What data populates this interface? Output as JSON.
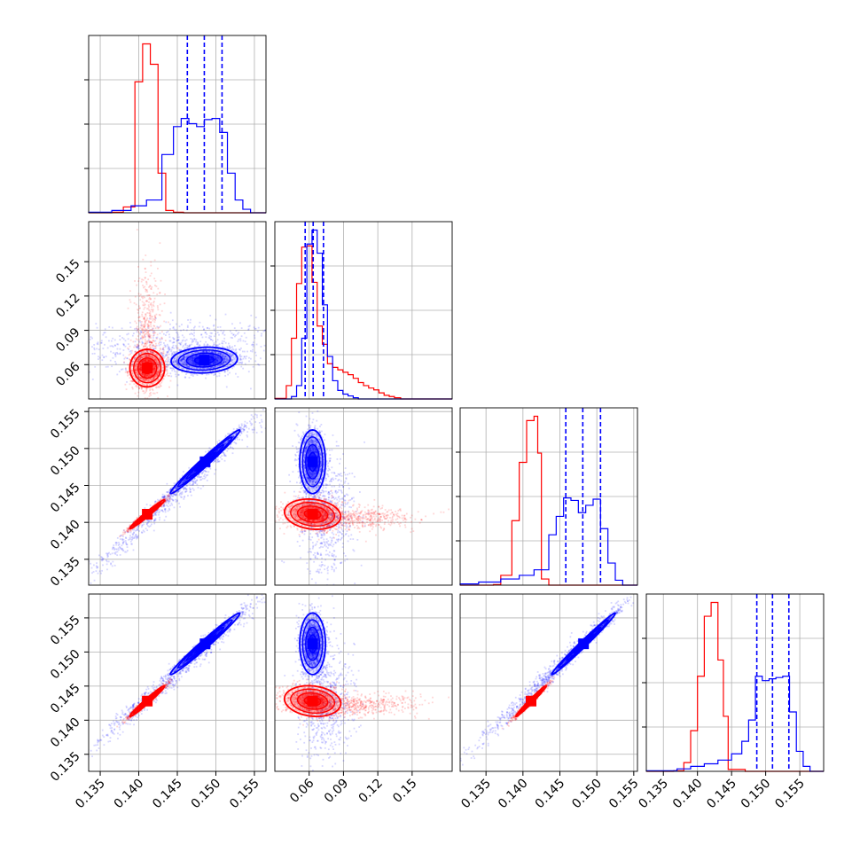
{
  "chart_data": {
    "type": "corner",
    "grid": true,
    "series": [
      {
        "color": "#ff0000"
      },
      {
        "color": "#0000ff"
      }
    ],
    "axes": {
      "p0": {
        "range": [
          0.1335,
          0.1565
        ],
        "ticks": [
          "0.135",
          "0.140",
          "0.145",
          "0.150",
          "0.155"
        ],
        "tick_values": [
          0.135,
          0.14,
          0.145,
          0.15,
          0.155
        ]
      },
      "p1": {
        "range": [
          0.03,
          0.185
        ],
        "ticks": [
          "0.06",
          "0.09",
          "0.12",
          "0.15"
        ],
        "tick_values": [
          0.06,
          0.09,
          0.12,
          0.15
        ]
      },
      "p2": {
        "range": [
          0.1315,
          0.1555
        ],
        "ticks": [
          "0.135",
          "0.140",
          "0.145",
          "0.150",
          "0.155"
        ],
        "tick_values": [
          0.135,
          0.14,
          0.145,
          0.15,
          0.155
        ]
      },
      "p3": {
        "range": [
          0.1325,
          0.1585
        ],
        "ticks": [
          "0.135",
          "0.140",
          "0.145",
          "0.150",
          "0.155"
        ],
        "tick_values": [
          0.135,
          0.14,
          0.145,
          0.15,
          0.155
        ]
      }
    },
    "diagonals": [
      {
        "param": "p0",
        "quantiles_blue": [
          0.1463,
          0.1485,
          0.1508
        ],
        "hist_red": {
          "edges": [
            0.1335,
            0.1365,
            0.138,
            0.1395,
            0.1405,
            0.1415,
            0.1425,
            0.1435,
            0.1445,
            0.1458,
            0.1565
          ],
          "values": [
            0,
            1,
            10,
            225,
            290,
            255,
            68,
            4,
            1,
            0
          ]
        },
        "hist_blue": {
          "edges": [
            0.1335,
            0.1365,
            0.139,
            0.141,
            0.143,
            0.1445,
            0.1455,
            0.1465,
            0.1475,
            0.1485,
            0.1495,
            0.1505,
            0.1515,
            0.1525,
            0.1535,
            0.1545,
            0.1565
          ],
          "values": [
            1,
            4,
            12,
            22,
            100,
            148,
            162,
            153,
            148,
            160,
            162,
            138,
            68,
            22,
            6,
            0
          ]
        }
      },
      {
        "param": "p1",
        "quantiles_blue": [
          0.0565,
          0.0635,
          0.0725
        ],
        "hist_red": {
          "edges": [
            0.03,
            0.04,
            0.0445,
            0.049,
            0.0535,
            0.058,
            0.0625,
            0.067,
            0.0715,
            0.076,
            0.0805,
            0.085,
            0.0895,
            0.094,
            0.0985,
            0.103,
            0.1075,
            0.112,
            0.1165,
            0.121,
            0.1255,
            0.13,
            0.1345,
            0.14,
            0.185
          ],
          "values": [
            1,
            22,
            100,
            190,
            250,
            252,
            192,
            120,
            90,
            58,
            52,
            48,
            44,
            40,
            34,
            27,
            22,
            18,
            15,
            10,
            6,
            4,
            2,
            0
          ]
        },
        "hist_blue": {
          "edges": [
            0.03,
            0.0445,
            0.049,
            0.0535,
            0.058,
            0.0625,
            0.067,
            0.0715,
            0.076,
            0.0805,
            0.085,
            0.0895,
            0.094,
            0.0985,
            0.103,
            0.185
          ],
          "values": [
            0,
            4,
            22,
            100,
            255,
            278,
            240,
            155,
            70,
            30,
            14,
            8,
            5,
            2,
            0
          ]
        }
      },
      {
        "param": "p2",
        "quantiles_blue": [
          0.1458,
          0.1481,
          0.1505
        ],
        "hist_red": {
          "edges": [
            0.1315,
            0.136,
            0.137,
            0.1385,
            0.1395,
            0.1405,
            0.1415,
            0.142,
            0.1425,
            0.1435,
            0.1555
          ],
          "values": [
            0,
            1,
            16,
            105,
            200,
            268,
            275,
            215,
            10,
            0
          ]
        },
        "hist_blue": {
          "edges": [
            0.1315,
            0.134,
            0.137,
            0.1395,
            0.1415,
            0.1435,
            0.1445,
            0.1455,
            0.1465,
            0.1475,
            0.1485,
            0.1495,
            0.1505,
            0.1515,
            0.1525,
            0.1535,
            0.1555
          ],
          "values": [
            2,
            5,
            10,
            16,
            25,
            82,
            112,
            142,
            138,
            118,
            130,
            140,
            92,
            36,
            8,
            0
          ]
        }
      },
      {
        "param": "p3",
        "quantiles_blue": [
          0.1487,
          0.151,
          0.1534
        ],
        "hist_red": {
          "edges": [
            0.1325,
            0.1365,
            0.138,
            0.139,
            0.14,
            0.141,
            0.142,
            0.143,
            0.1438,
            0.1445,
            0.147,
            0.1585
          ],
          "values": [
            0,
            1,
            14,
            65,
            152,
            248,
            270,
            178,
            88,
            3,
            0
          ]
        },
        "hist_blue": {
          "edges": [
            0.1325,
            0.137,
            0.139,
            0.141,
            0.143,
            0.145,
            0.1465,
            0.1475,
            0.1485,
            0.1495,
            0.1505,
            0.1515,
            0.1525,
            0.1535,
            0.1545,
            0.1555,
            0.1565,
            0.1585
          ],
          "values": [
            1,
            4,
            8,
            12,
            18,
            28,
            48,
            82,
            152,
            145,
            148,
            150,
            152,
            95,
            32,
            8,
            0
          ]
        }
      }
    ],
    "pairs": [
      {
        "x": "p0",
        "y": "p1",
        "red": {
          "mean": [
            0.1411,
            0.057
          ],
          "sd": [
            0.0011,
            0.008
          ],
          "rho": 0.0,
          "tail": {
            "sd": [
              0.0009,
              0.028
            ],
            "shift": [
              0,
              0.03
            ],
            "weight": 0.3
          }
        },
        "blue": {
          "mean": [
            0.1485,
            0.064
          ],
          "sd": [
            0.0021,
            0.0055
          ],
          "rho": 0.1
        },
        "blue_bg": {
          "mean": [
            0.145,
            0.075
          ],
          "sd": [
            0.007,
            0.012
          ],
          "rho": 0.0,
          "weight": 0.15
        }
      },
      {
        "x": "p0",
        "y": "p2",
        "red": {
          "mean": [
            0.1411,
            0.1411
          ],
          "sd": [
            0.0011,
            0.00095
          ],
          "rho": 0.98
        },
        "blue": {
          "mean": [
            0.1486,
            0.1482
          ],
          "sd": [
            0.0022,
            0.0021
          ],
          "rho": 0.985
        },
        "blue_bg": {
          "mean": [
            0.1445,
            0.1435
          ],
          "sd": [
            0.006,
            0.0058
          ],
          "rho": 0.99,
          "weight": 0.2
        }
      },
      {
        "x": "p1",
        "y": "p2",
        "red": {
          "mean": [
            0.063,
            0.1411
          ],
          "sd": [
            0.012,
            0.001
          ],
          "rho": -0.15,
          "tail": {
            "sd": [
              0.028,
              0.0008
            ],
            "shift": [
              0.035,
              -0.0005
            ],
            "weight": 0.35
          }
        },
        "blue": {
          "mean": [
            0.063,
            0.1482
          ],
          "sd": [
            0.0055,
            0.0021
          ],
          "rho": 0.0
        },
        "blue_bg": {
          "mean": [
            0.075,
            0.141
          ],
          "sd": [
            0.012,
            0.004
          ],
          "rho": 0.0,
          "weight": 0.15
        }
      },
      {
        "x": "p0",
        "y": "p3",
        "red": {
          "mean": [
            0.1411,
            0.1428
          ],
          "sd": [
            0.0011,
            0.0011
          ],
          "rho": 0.98
        },
        "blue": {
          "mean": [
            0.1486,
            0.1512
          ],
          "sd": [
            0.0022,
            0.0022
          ],
          "rho": 0.985
        },
        "blue_bg": {
          "mean": [
            0.1445,
            0.1465
          ],
          "sd": [
            0.006,
            0.006
          ],
          "rho": 0.99,
          "weight": 0.2
        }
      },
      {
        "x": "p1",
        "y": "p3",
        "red": {
          "mean": [
            0.063,
            0.1428
          ],
          "sd": [
            0.012,
            0.0011
          ],
          "rho": -0.15,
          "tail": {
            "sd": [
              0.028,
              0.0008
            ],
            "shift": [
              0.035,
              -0.0006
            ],
            "weight": 0.35
          }
        },
        "blue": {
          "mean": [
            0.063,
            0.1512
          ],
          "sd": [
            0.0055,
            0.0022
          ],
          "rho": 0.0
        },
        "blue_bg": {
          "mean": [
            0.075,
            0.143
          ],
          "sd": [
            0.012,
            0.004
          ],
          "rho": 0.0,
          "weight": 0.15
        }
      },
      {
        "x": "p2",
        "y": "p3",
        "red": {
          "mean": [
            0.1411,
            0.1428
          ],
          "sd": [
            0.001,
            0.0011
          ],
          "rho": 0.985
        },
        "blue": {
          "mean": [
            0.1482,
            0.1512
          ],
          "sd": [
            0.0021,
            0.0022
          ],
          "rho": 0.99
        },
        "blue_bg": {
          "mean": [
            0.1435,
            0.1465
          ],
          "sd": [
            0.0055,
            0.0058
          ],
          "rho": 0.99,
          "weight": 0.2
        }
      }
    ]
  }
}
